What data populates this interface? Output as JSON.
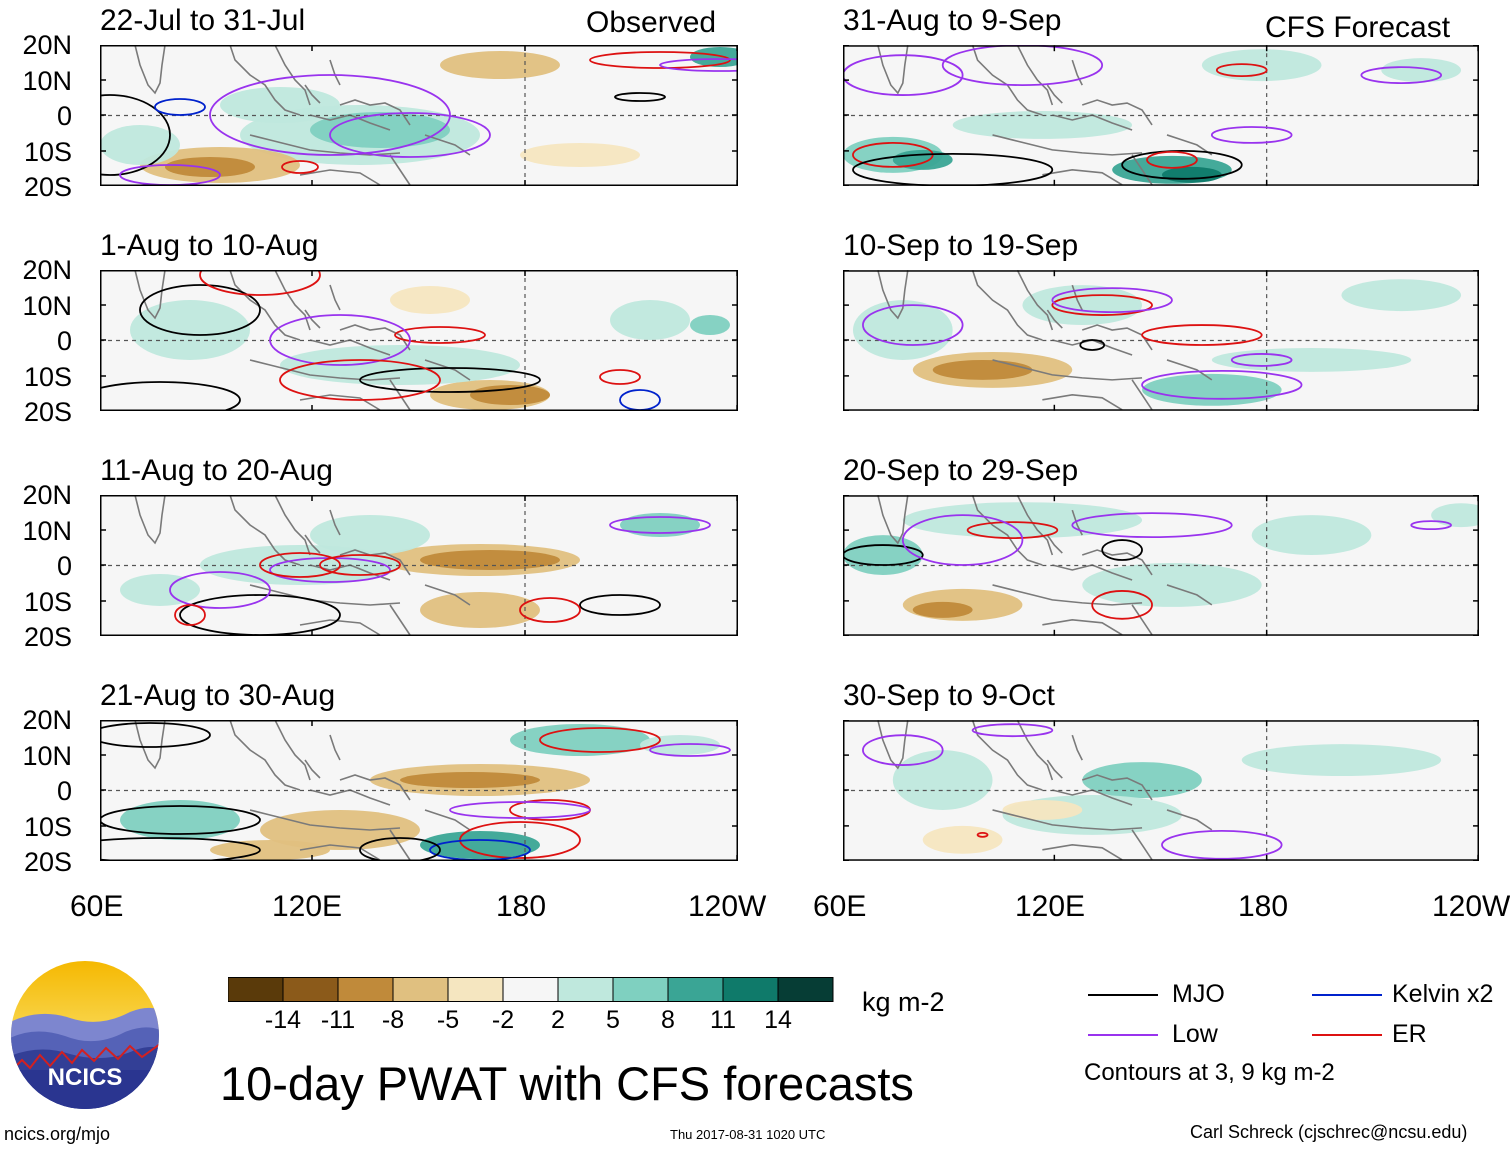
{
  "header": {
    "observed_label": "Observed",
    "forecast_label": "CFS Forecast"
  },
  "panels": {
    "observed": [
      {
        "title": "22-Jul to 31-Jul"
      },
      {
        "title": "1-Aug to 10-Aug"
      },
      {
        "title": "11-Aug to 20-Aug"
      },
      {
        "title": "21-Aug to 30-Aug"
      }
    ],
    "forecast": [
      {
        "title": "31-Aug to 9-Sep"
      },
      {
        "title": "10-Sep to 19-Sep"
      },
      {
        "title": "20-Sep to 29-Sep"
      },
      {
        "title": "30-Sep to 9-Oct"
      }
    ]
  },
  "axes": {
    "lat_labels": [
      "20N",
      "10N",
      "0",
      "10S",
      "20S"
    ],
    "lon_labels": [
      "60E",
      "120E",
      "180",
      "120W"
    ]
  },
  "colorbar": {
    "labels": [
      "-14",
      "-11",
      "-8",
      "-5",
      "-2",
      "2",
      "5",
      "8",
      "11",
      "14"
    ],
    "units": "kg m-2",
    "colors": [
      "#5a3a0a",
      "#8b5a1a",
      "#c08a3a",
      "#e0c080",
      "#f5e6c0",
      "#f6f6f6",
      "#bfe8dd",
      "#7fd0c0",
      "#3aa595",
      "#0f7a6a",
      "#063d35"
    ]
  },
  "legend": {
    "items": [
      {
        "name": "MJO",
        "color": "#000000"
      },
      {
        "name": "Kelvin x2",
        "color": "#0022cc"
      },
      {
        "name": "Low",
        "color": "#9933ee"
      },
      {
        "name": "ER",
        "color": "#dd1111"
      }
    ],
    "note": "Contours at 3, 9 kg m-2"
  },
  "footer": {
    "main_title": "10-day PWAT with CFS forecasts",
    "logo_text": "NCICS",
    "url": "ncics.org/mjo",
    "timestamp": "Thu 2017-08-31 1020 UTC",
    "credit": "Carl Schreck (cjschrec@ncsu.edu)"
  }
}
